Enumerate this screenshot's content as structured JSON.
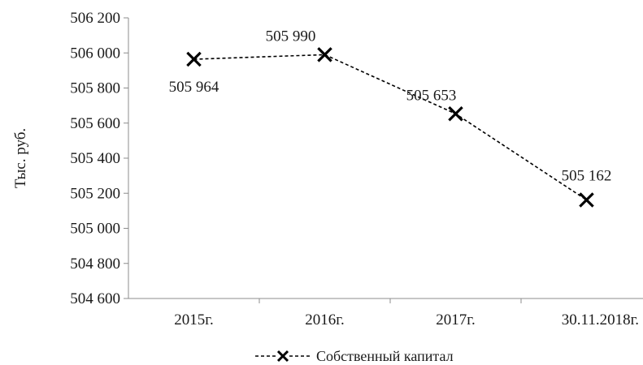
{
  "chart_data": {
    "type": "line",
    "categories": [
      "2015г.",
      "2016г.",
      "2017г.",
      "30.11.2018г."
    ],
    "series": [
      {
        "name": "Собственный капитал",
        "values": [
          505964,
          505990,
          505653,
          505162
        ],
        "data_labels": [
          "505 964",
          "505 990",
          "505 653",
          "505 162"
        ],
        "color": "#000000",
        "line_style": "dashed",
        "marker": "x"
      }
    ],
    "ylabel": "Тыс. руб.",
    "ylim": [
      504600,
      506200
    ],
    "ytick_values": [
      504600,
      504800,
      505000,
      505200,
      505400,
      505600,
      505800,
      506000,
      506200
    ],
    "ytick_labels": [
      "504 600",
      "504 800",
      "505 000",
      "505 200",
      "505 400",
      "505 600",
      "505 800",
      "506 000",
      "506 200"
    ],
    "grid": false,
    "legend_position": "bottom"
  }
}
